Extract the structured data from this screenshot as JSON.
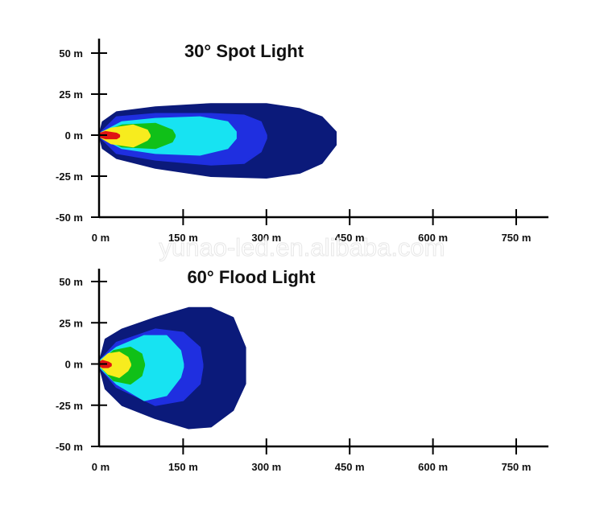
{
  "watermark": "yunao-led.en.alibaba.com",
  "chart_data": [
    {
      "type": "area",
      "title": "30° Spot Light",
      "xlabel": "",
      "ylabel": "",
      "xlim": [
        0,
        750
      ],
      "ylim": [
        -50,
        50
      ],
      "x_ticks": [
        0,
        150,
        300,
        450,
        600,
        750
      ],
      "x_tick_labels": [
        "0 m",
        "150 m",
        "300 m",
        "450 m",
        "600 m",
        "750 m"
      ],
      "y_ticks": [
        50,
        25,
        0,
        -25,
        -50
      ],
      "y_tick_labels": [
        "50 m",
        "25 m",
        "0 m",
        "-25 m",
        "-50 m"
      ],
      "grid": false,
      "series": [
        {
          "color": "#0b1a7a",
          "reach": 425,
          "upper": [
            [
              0,
              1
            ],
            [
              5,
              8
            ],
            [
              30,
              14
            ],
            [
              100,
              17
            ],
            [
              200,
              19
            ],
            [
              300,
              19
            ],
            [
              360,
              16
            ],
            [
              400,
              11
            ],
            [
              425,
              2
            ]
          ],
          "lower": [
            [
              0,
              -1
            ],
            [
              5,
              -8
            ],
            [
              30,
              -14
            ],
            [
              100,
              -20
            ],
            [
              200,
              -25
            ],
            [
              300,
              -26
            ],
            [
              360,
              -23
            ],
            [
              400,
              -17
            ],
            [
              425,
              -6
            ]
          ]
        },
        {
          "color": "#1f2fe0",
          "reach": 300,
          "upper": [
            [
              0,
              1
            ],
            [
              30,
              11
            ],
            [
              100,
              13
            ],
            [
              200,
              13
            ],
            [
              260,
              12
            ],
            [
              290,
              8
            ],
            [
              300,
              0
            ]
          ],
          "lower": [
            [
              0,
              -1
            ],
            [
              30,
              -11
            ],
            [
              100,
              -15
            ],
            [
              200,
              -18
            ],
            [
              260,
              -17
            ],
            [
              290,
              -10
            ],
            [
              300,
              -2
            ]
          ]
        },
        {
          "color": "#17e3f2",
          "reach": 245,
          "upper": [
            [
              0,
              1
            ],
            [
              40,
              8
            ],
            [
              100,
              10
            ],
            [
              180,
              11
            ],
            [
              230,
              8
            ],
            [
              245,
              2
            ]
          ],
          "lower": [
            [
              0,
              -1
            ],
            [
              40,
              -8
            ],
            [
              100,
              -11
            ],
            [
              180,
              -12
            ],
            [
              230,
              -8
            ],
            [
              245,
              -2
            ]
          ]
        },
        {
          "color": "#10c018",
          "reach": 135,
          "upper": [
            [
              0,
              1
            ],
            [
              40,
              6
            ],
            [
              100,
              7
            ],
            [
              130,
              3
            ],
            [
              135,
              0
            ]
          ],
          "lower": [
            [
              0,
              -1
            ],
            [
              40,
              -7
            ],
            [
              100,
              -8
            ],
            [
              130,
              -4
            ],
            [
              135,
              -1
            ]
          ]
        },
        {
          "color": "#f7ec1e",
          "reach": 90,
          "upper": [
            [
              0,
              1
            ],
            [
              20,
              4
            ],
            [
              60,
              6
            ],
            [
              85,
              3
            ],
            [
              90,
              0
            ]
          ],
          "lower": [
            [
              0,
              -1
            ],
            [
              20,
              -5
            ],
            [
              60,
              -7
            ],
            [
              85,
              -3
            ],
            [
              90,
              -1
            ]
          ]
        },
        {
          "color": "#e01313",
          "reach": 35,
          "upper": [
            [
              0,
              1
            ],
            [
              10,
              2
            ],
            [
              30,
              1
            ],
            [
              35,
              0
            ]
          ],
          "lower": [
            [
              0,
              -1
            ],
            [
              10,
              -2
            ],
            [
              30,
              -2
            ],
            [
              35,
              -1
            ]
          ]
        }
      ]
    },
    {
      "type": "area",
      "title": "60° Flood Light",
      "xlabel": "",
      "ylabel": "",
      "xlim": [
        0,
        750
      ],
      "ylim": [
        -50,
        50
      ],
      "x_ticks": [
        0,
        150,
        300,
        450,
        600,
        750
      ],
      "x_tick_labels": [
        "0 m",
        "150 m",
        "300 m",
        "450 m",
        "600 m",
        "750 m"
      ],
      "y_ticks": [
        50,
        25,
        0,
        -25,
        -50
      ],
      "y_tick_labels": [
        "50 m",
        "25 m",
        "0 m",
        "-25 m",
        "-50 m"
      ],
      "grid": false,
      "series": [
        {
          "color": "#0b1a7a",
          "reach": 262,
          "upper": [
            [
              0,
              2
            ],
            [
              10,
              15
            ],
            [
              40,
              21
            ],
            [
              100,
              28
            ],
            [
              160,
              34
            ],
            [
              200,
              34
            ],
            [
              240,
              28
            ],
            [
              262,
              10
            ]
          ],
          "lower": [
            [
              0,
              -2
            ],
            [
              10,
              -15
            ],
            [
              40,
              -25
            ],
            [
              100,
              -33
            ],
            [
              160,
              -39
            ],
            [
              200,
              -38
            ],
            [
              240,
              -28
            ],
            [
              262,
              -12
            ]
          ]
        },
        {
          "color": "#1f2fe0",
          "reach": 185,
          "upper": [
            [
              0,
              2
            ],
            [
              30,
              13
            ],
            [
              100,
              21
            ],
            [
              150,
              19
            ],
            [
              180,
              10
            ],
            [
              185,
              0
            ]
          ],
          "lower": [
            [
              0,
              -2
            ],
            [
              30,
              -14
            ],
            [
              100,
              -25
            ],
            [
              150,
              -22
            ],
            [
              180,
              -12
            ],
            [
              185,
              -2
            ]
          ]
        },
        {
          "color": "#17e3f2",
          "reach": 150,
          "upper": [
            [
              0,
              2
            ],
            [
              30,
              10
            ],
            [
              80,
              17
            ],
            [
              120,
              17
            ],
            [
              145,
              8
            ],
            [
              150,
              0
            ]
          ],
          "lower": [
            [
              0,
              -2
            ],
            [
              30,
              -12
            ],
            [
              80,
              -22
            ],
            [
              120,
              -19
            ],
            [
              145,
              -8
            ],
            [
              150,
              -2
            ]
          ]
        },
        {
          "color": "#10c018",
          "reach": 80,
          "upper": [
            [
              0,
              1
            ],
            [
              25,
              8
            ],
            [
              55,
              10
            ],
            [
              75,
              6
            ],
            [
              80,
              0
            ]
          ],
          "lower": [
            [
              0,
              -1
            ],
            [
              25,
              -10
            ],
            [
              55,
              -12
            ],
            [
              75,
              -7
            ],
            [
              80,
              -1
            ]
          ]
        },
        {
          "color": "#f7ec1e",
          "reach": 55,
          "upper": [
            [
              0,
              1
            ],
            [
              15,
              6
            ],
            [
              35,
              7
            ],
            [
              50,
              4
            ],
            [
              55,
              0
            ]
          ],
          "lower": [
            [
              0,
              -1
            ],
            [
              15,
              -6
            ],
            [
              35,
              -8
            ],
            [
              50,
              -4
            ],
            [
              55,
              -1
            ]
          ]
        },
        {
          "color": "#e01313",
          "reach": 20,
          "upper": [
            [
              0,
              1
            ],
            [
              5,
              2
            ],
            [
              15,
              1
            ],
            [
              20,
              0
            ]
          ],
          "lower": [
            [
              0,
              -1
            ],
            [
              5,
              -2
            ],
            [
              15,
              -2
            ],
            [
              20,
              -1
            ]
          ]
        }
      ]
    }
  ]
}
